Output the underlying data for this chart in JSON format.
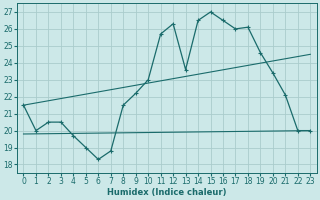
{
  "xlabel": "Humidex (Indice chaleur)",
  "bg_color": "#cce8e8",
  "grid_color": "#aacccc",
  "line_color": "#1a6b6b",
  "xlim": [
    -0.5,
    23.5
  ],
  "ylim": [
    17.5,
    27.5
  ],
  "xticks": [
    0,
    1,
    2,
    3,
    4,
    5,
    6,
    7,
    8,
    9,
    10,
    11,
    12,
    13,
    14,
    15,
    16,
    17,
    18,
    19,
    20,
    21,
    22,
    23
  ],
  "yticks": [
    18,
    19,
    20,
    21,
    22,
    23,
    24,
    25,
    26,
    27
  ],
  "line1_x": [
    0,
    1,
    2,
    3,
    4,
    5,
    6,
    7,
    8,
    9,
    10,
    11,
    12,
    13,
    14,
    15,
    16,
    17,
    18,
    19,
    20,
    21,
    22,
    23
  ],
  "line1_y": [
    21.5,
    20.0,
    20.5,
    20.5,
    19.7,
    19.0,
    18.3,
    18.8,
    21.5,
    22.2,
    23.0,
    25.7,
    26.3,
    23.6,
    26.5,
    27.0,
    26.5,
    26.0,
    26.1,
    24.6,
    23.4,
    22.1,
    20.0,
    20.0
  ],
  "line2_x": [
    0,
    23
  ],
  "line2_y": [
    21.5,
    24.5
  ],
  "line3_x": [
    0,
    23
  ],
  "line3_y": [
    19.8,
    20.0
  ]
}
